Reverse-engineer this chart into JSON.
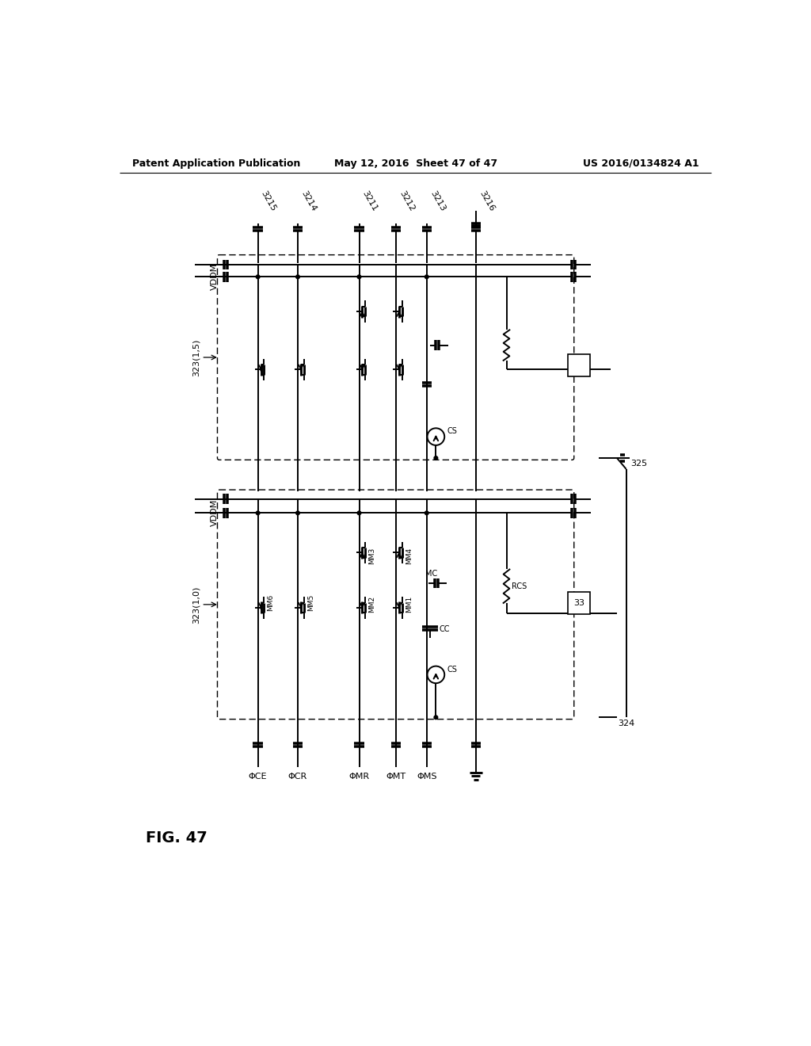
{
  "bg_color": "#ffffff",
  "line_color": "#000000",
  "header_left": "Patent Application Publication",
  "header_mid": "May 12, 2016  Sheet 47 of 47",
  "header_right": "US 2016/0134824 A1",
  "fig_label": "FIG. 47"
}
